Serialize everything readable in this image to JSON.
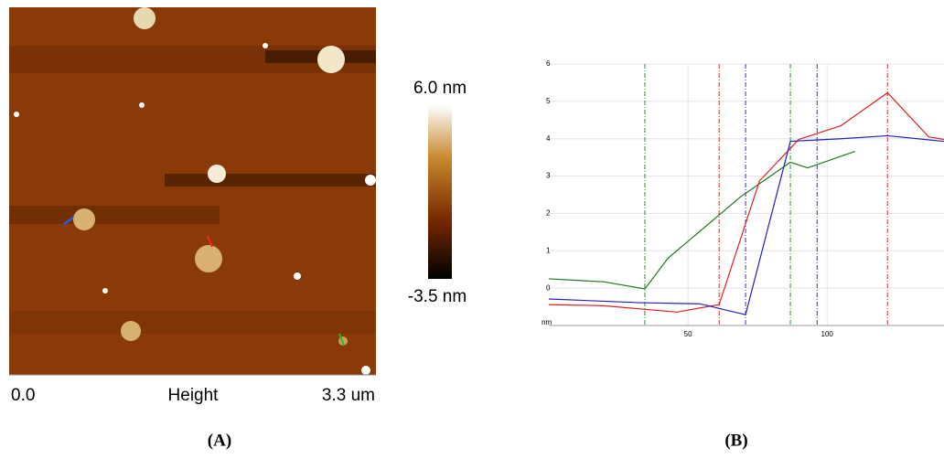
{
  "panel_a": {
    "scale_max": "6.0 nm",
    "scale_min": "-3.5 nm",
    "x_start": "0.0",
    "x_label": "Height",
    "x_end": "3.3 um",
    "caption": "(A)"
  },
  "chart_data": {
    "type": "line",
    "caption": "(B)",
    "ylabel": "nm",
    "xlim": [
      0,
      142
    ],
    "ylim": [
      -1,
      6
    ],
    "xticks": [
      50,
      100
    ],
    "yticks": [
      0,
      1,
      2,
      3,
      4,
      5,
      6
    ],
    "grid": true,
    "markers": [
      {
        "x": 34.5,
        "color": "#2e8b2e"
      },
      {
        "x": 61.2,
        "color": "#d03030"
      },
      {
        "x": 70.7,
        "color": "#3030c0"
      },
      {
        "x": 86.8,
        "color": "#2e8b2e"
      },
      {
        "x": 96.4,
        "color": "#3030c0"
      },
      {
        "x": 121.7,
        "color": "#d03030"
      }
    ],
    "series": [
      {
        "color": "#1f7a1f",
        "x": [
          0,
          19.7,
          34.5,
          42.8,
          69,
          86.8,
          93,
          110
        ],
        "values": [
          0.25,
          0.17,
          -0.02,
          0.8,
          2.45,
          3.37,
          3.22,
          3.66
        ]
      },
      {
        "color": "#e02020",
        "x": [
          0,
          19.7,
          46,
          61.2,
          75.7,
          89.8,
          105,
          121.7,
          136.5,
          142
        ],
        "values": [
          -0.44,
          -0.47,
          -0.64,
          -0.44,
          2.87,
          3.98,
          4.35,
          5.23,
          4.05,
          3.98
        ]
      },
      {
        "color": "#2020c0",
        "x": [
          0,
          32.9,
          54.3,
          70.7,
          86.8,
          105,
          121.7,
          142
        ],
        "values": [
          -0.29,
          -0.39,
          -0.42,
          -0.71,
          3.93,
          4.0,
          4.08,
          3.93
        ]
      }
    ]
  }
}
